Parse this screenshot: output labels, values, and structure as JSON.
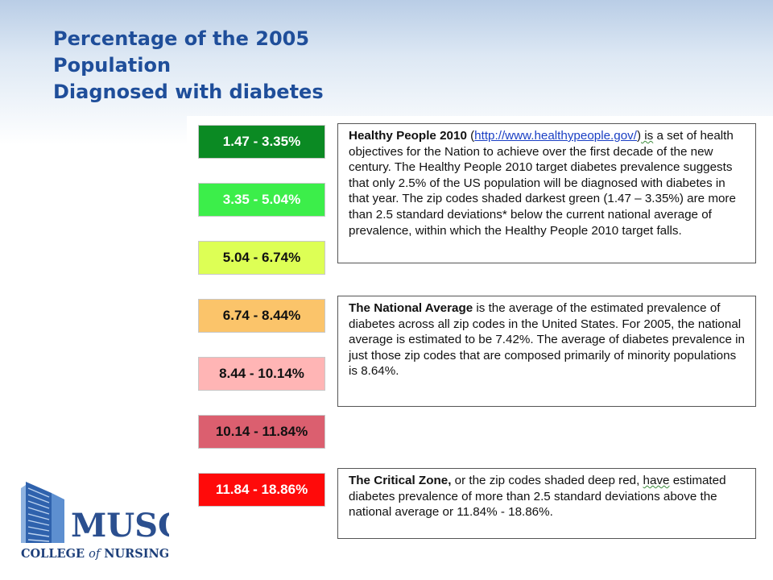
{
  "title": {
    "line1": "Percentage of the 2005",
    "line2": "Population",
    "line3": "Diagnosed with diabetes"
  },
  "legend": [
    {
      "label": "1.47 - 3.35%",
      "color": "#0b8a23",
      "text_color": "#ffffff"
    },
    {
      "label": "3.35 - 5.04%",
      "color": "#3cee4a",
      "text_color": "#ffffff"
    },
    {
      "label": "5.04 - 6.74%",
      "color": "#ddff55",
      "text_color": "#111111"
    },
    {
      "label": "6.74 - 8.44%",
      "color": "#fbc46a",
      "text_color": "#111111"
    },
    {
      "label": "8.44 - 10.14%",
      "color": "#ffb5b5",
      "text_color": "#111111"
    },
    {
      "label": "10.14 - 11.84%",
      "color": "#db5f6f",
      "text_color": "#111111"
    },
    {
      "label": "11.84 - 18.86%",
      "color": "#ff0a0a",
      "text_color": "#ffffff"
    }
  ],
  "boxes": {
    "healthy_people": {
      "heading": "Healthy People 2010",
      "paren_open": " (",
      "link": "http://www.healthypeople.gov/",
      "paren_close": ")",
      "is_word": " is",
      "body": " a set of health objectives for the Nation to achieve over the first decade of the new century.  The Healthy People 2010 target diabetes prevalence suggests that only 2.5% of the US population will be diagnosed with diabetes in that year.  The zip codes shaded darkest green (1.47 – 3.35%) are more than 2.5 standard deviations* below the current national average of prevalence, within which the Healthy People 2010 target falls."
    },
    "national_average": {
      "heading": "The National Average",
      "body": " is the average of the estimated prevalence of diabetes across all zip codes in the United States.  For 2005, the national average is estimated to be 7.42%.  The average of diabetes prevalence in just those zip codes that are composed primarily of minority populations is 8.64%."
    },
    "critical_zone": {
      "heading": "The Critical Zone,",
      "body_before": " or the zip codes shaded deep red, ",
      "have_word": "have",
      "body_after": " estimated diabetes prevalence of more than 2.5 standard deviations above the national average or 11.84% - 18.86%."
    }
  },
  "logo": {
    "name": "MUSC",
    "subtitle_part1": "COLLEGE ",
    "subtitle_of": "of",
    "subtitle_part2": " NURSING",
    "colors": {
      "navy": "#1d3f7a",
      "blue": "#3a6fb8",
      "light": "#8fb3e0"
    }
  },
  "colors": {
    "title": "#1f4e9a",
    "link": "#1a3fc4"
  }
}
